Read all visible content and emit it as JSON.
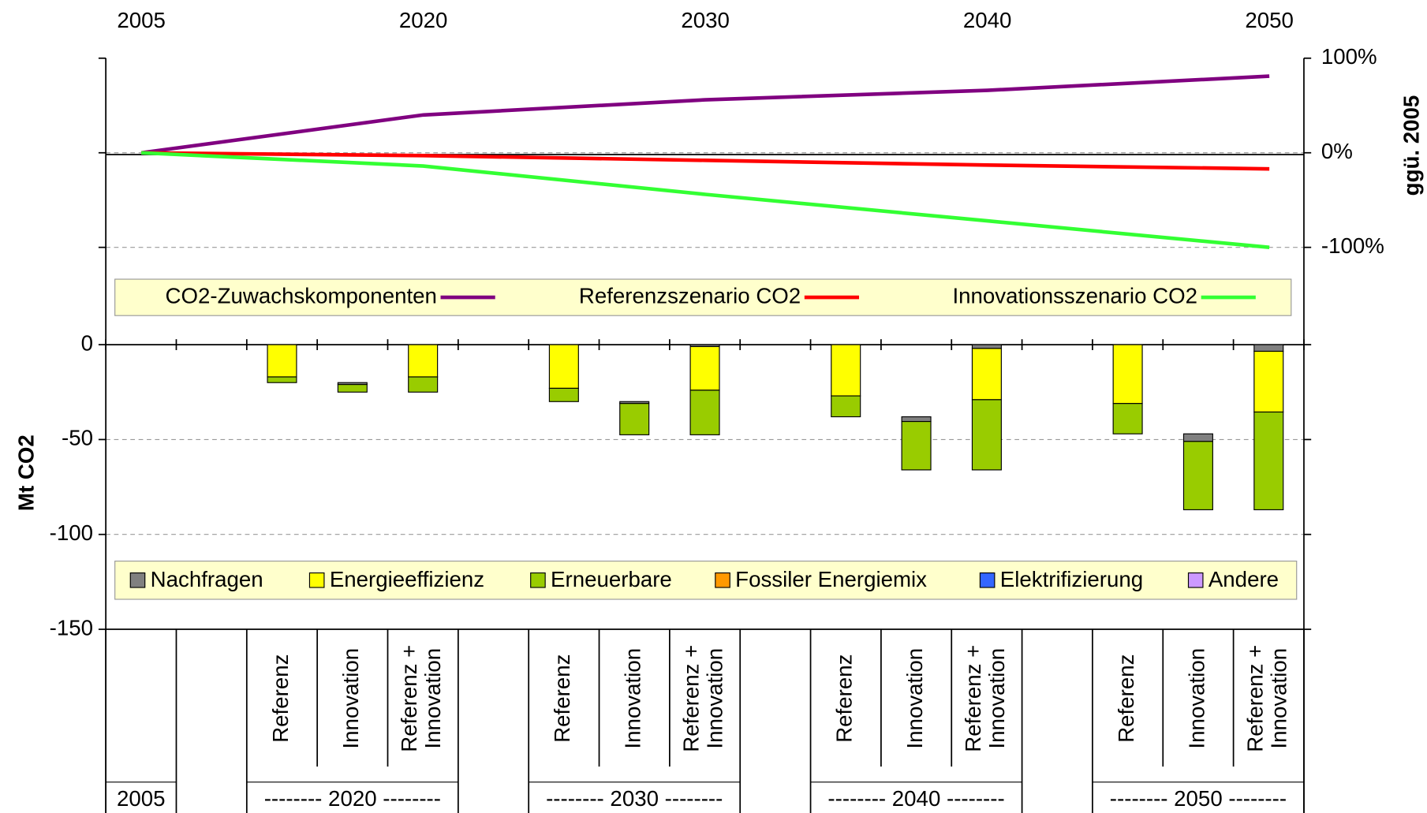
{
  "chart_data": [
    {
      "type": "line",
      "categories": [
        "2005",
        "2020",
        "2030",
        "2040",
        "2050"
      ],
      "series": [
        {
          "name": "CO2-Zuwachskomponenten",
          "color": "#800080",
          "values": [
            0,
            40,
            56,
            66,
            81
          ],
          "axis": "y2"
        },
        {
          "name": "Referenzszenario CO2",
          "color": "#ff0000",
          "values": [
            0,
            -3,
            -8,
            -13,
            -17
          ],
          "axis": "y2"
        },
        {
          "name": "Innovationsszenario CO2",
          "color": "#33ff33",
          "values": [
            0,
            -14,
            -44,
            -72,
            -100
          ],
          "axis": "y2"
        }
      ],
      "y2lim": [
        -100,
        100
      ],
      "y2ticks": [
        {
          "value": 100,
          "label": "100%"
        },
        {
          "value": 0,
          "label": "0%"
        },
        {
          "value": -100,
          "label": "-100%"
        }
      ],
      "y2_label": "ggü. 2005",
      "grid": true
    },
    {
      "type": "bar",
      "stacked": true,
      "categories": [
        null,
        null,
        "Referenz",
        "Innovation",
        "Referenz + Innovation",
        null,
        "Referenz",
        "Innovation",
        "Referenz + Innovation",
        null,
        "Referenz",
        "Innovation",
        "Referenz + Innovation",
        null,
        "Referenz",
        "Innovation",
        "Referenz + Innovation"
      ],
      "groups": [
        "2005",
        "-------- 2020 --------",
        "-------- 2030 --------",
        "-------- 2040 --------",
        "-------- 2050 --------"
      ],
      "series": [
        {
          "name": "Nachfragen",
          "color": "#808080",
          "values": [
            null,
            null,
            0,
            -1,
            0,
            null,
            0,
            -1,
            -1,
            null,
            0,
            -2.5,
            -2,
            null,
            0,
            -4,
            -3.5
          ]
        },
        {
          "name": "Energieeffizienz",
          "color": "#ffff00",
          "values": [
            null,
            null,
            -17,
            0,
            -17,
            null,
            -23,
            0,
            -23,
            null,
            -27,
            0,
            -27,
            null,
            -31,
            0,
            -32
          ]
        },
        {
          "name": "Erneuerbare",
          "color": "#99cc00",
          "values": [
            null,
            null,
            -3,
            -4,
            -8,
            null,
            -7,
            -16.5,
            -23.5,
            null,
            -11,
            -25.5,
            -37,
            null,
            -16,
            -36,
            -51.5
          ]
        },
        {
          "name": "Fossiler Energiemix",
          "color": "#ff9900",
          "values": [
            null,
            null,
            0,
            0,
            0,
            null,
            0,
            0,
            0,
            null,
            0,
            0,
            0,
            null,
            0,
            0,
            0
          ]
        },
        {
          "name": "Elektrifizierung",
          "color": "#3366ff",
          "values": [
            null,
            null,
            0,
            0,
            0,
            null,
            0,
            0,
            0,
            null,
            0,
            0,
            0,
            null,
            0,
            0,
            0
          ]
        },
        {
          "name": "Andere",
          "color": "#cc99ff",
          "values": [
            null,
            null,
            0,
            0,
            0,
            null,
            0,
            0,
            0,
            null,
            0,
            0,
            0,
            null,
            0,
            0,
            0
          ]
        }
      ],
      "ylim": [
        -150,
        0
      ],
      "yticks": [
        0,
        -50,
        -100,
        -150
      ],
      "y_label": "Mt CO2",
      "grid": true
    }
  ]
}
